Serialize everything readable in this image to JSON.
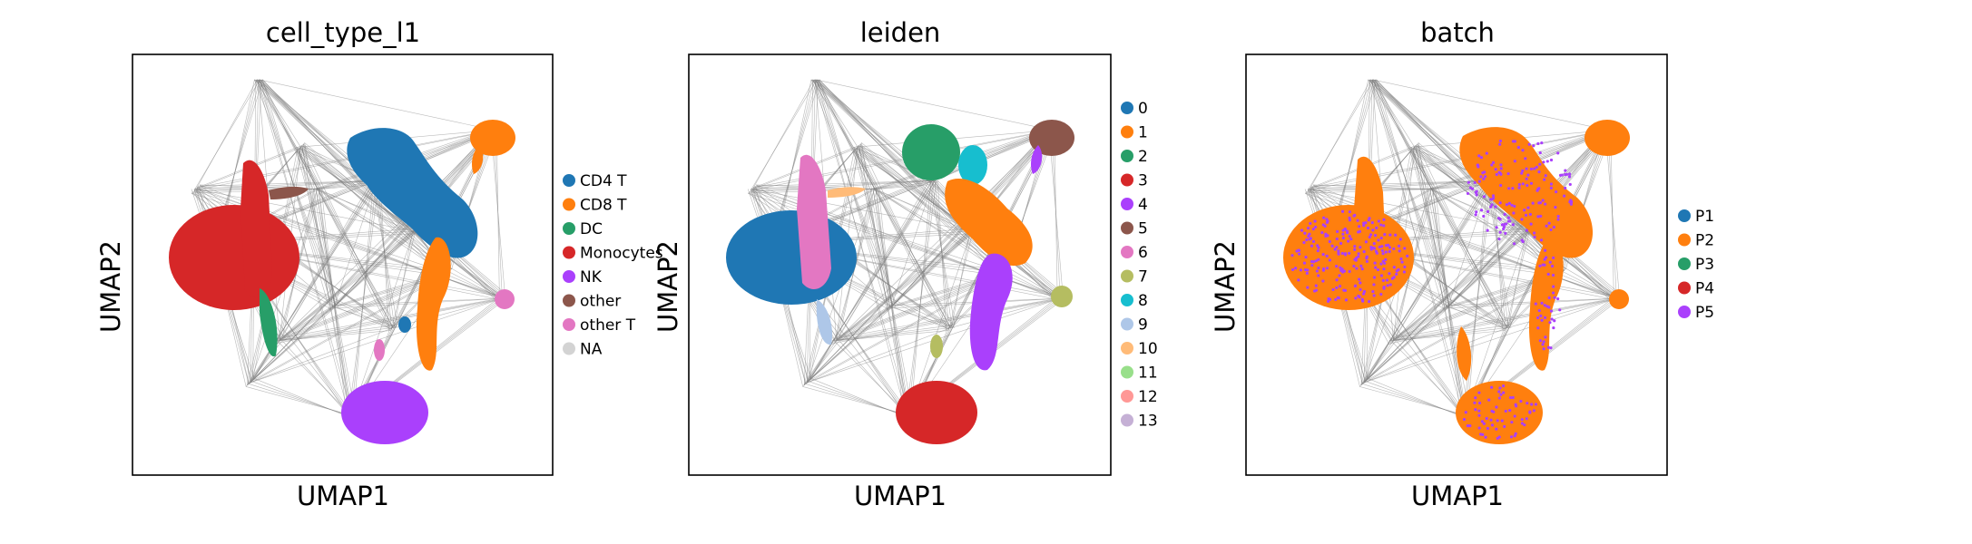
{
  "colors": {
    "edge": "#808080",
    "c_blue": "#1f77b4",
    "c_orange": "#ff7f0e",
    "c_green": "#279e68",
    "c_red": "#d62728",
    "c_purple": "#aa40fc",
    "c_brown": "#8c564b",
    "c_pink": "#e377c2",
    "c_olive": "#b5bd61",
    "c_cyan": "#17becf",
    "c_ltblue": "#aec7e8",
    "c_peach": "#ffbb78",
    "c_ltgreen": "#98df8a",
    "c_salmon": "#ff9896",
    "c_lavender": "#c5b0d5",
    "c_na": "#d3d3d3"
  },
  "chart_data": [
    {
      "type": "scatter",
      "title": "cell_type_l1",
      "xlabel": "UMAP1",
      "ylabel": "UMAP2",
      "ticks": "none",
      "legend_position": "right",
      "legend": [
        {
          "label": "CD4 T",
          "color": "#1f77b4"
        },
        {
          "label": "CD8 T",
          "color": "#ff7f0e"
        },
        {
          "label": "DC",
          "color": "#279e68"
        },
        {
          "label": "Monocytes",
          "color": "#d62728"
        },
        {
          "label": "NK",
          "color": "#aa40fc"
        },
        {
          "label": "other",
          "color": "#8c564b"
        },
        {
          "label": "other T",
          "color": "#e377c2"
        },
        {
          "label": "NA",
          "color": "#d3d3d3"
        }
      ]
    },
    {
      "type": "scatter",
      "title": "leiden",
      "xlabel": "UMAP1",
      "ylabel": "UMAP2",
      "ticks": "none",
      "legend_position": "right",
      "legend": [
        {
          "label": "0",
          "color": "#1f77b4"
        },
        {
          "label": "1",
          "color": "#ff7f0e"
        },
        {
          "label": "2",
          "color": "#279e68"
        },
        {
          "label": "3",
          "color": "#d62728"
        },
        {
          "label": "4",
          "color": "#aa40fc"
        },
        {
          "label": "5",
          "color": "#8c564b"
        },
        {
          "label": "6",
          "color": "#e377c2"
        },
        {
          "label": "7",
          "color": "#b5bd61"
        },
        {
          "label": "8",
          "color": "#17becf"
        },
        {
          "label": "9",
          "color": "#aec7e8"
        },
        {
          "label": "10",
          "color": "#ffbb78"
        },
        {
          "label": "11",
          "color": "#98df8a"
        },
        {
          "label": "12",
          "color": "#ff9896"
        },
        {
          "label": "13",
          "color": "#c5b0d5"
        }
      ]
    },
    {
      "type": "scatter",
      "title": "batch",
      "xlabel": "UMAP1",
      "ylabel": "UMAP2",
      "ticks": "none",
      "legend_position": "right",
      "legend": [
        {
          "label": "P1",
          "color": "#1f77b4"
        },
        {
          "label": "P2",
          "color": "#ff7f0e"
        },
        {
          "label": "P3",
          "color": "#279e68"
        },
        {
          "label": "P4",
          "color": "#d62728"
        },
        {
          "label": "P5",
          "color": "#aa40fc"
        }
      ]
    }
  ]
}
